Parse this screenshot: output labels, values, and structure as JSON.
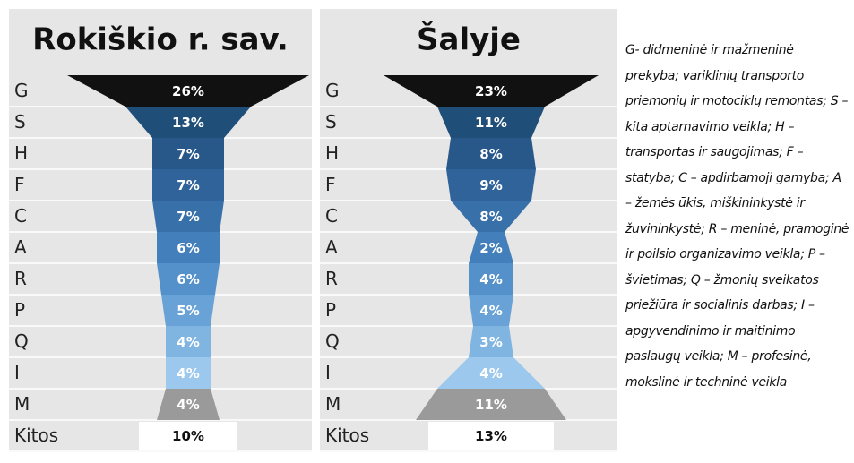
{
  "chart_data": [
    {
      "type": "funnel",
      "title": "Rokiškio r. sav.",
      "categories": [
        "G",
        "S",
        "H",
        "F",
        "C",
        "A",
        "R",
        "P",
        "Q",
        "I",
        "M",
        "Kitos"
      ],
      "values": [
        26,
        13,
        7,
        7,
        7,
        6,
        6,
        5,
        4,
        4,
        4,
        10
      ],
      "value_labels": [
        "26%",
        "13%",
        "7%",
        "7%",
        "7%",
        "6%",
        "6%",
        "5%",
        "4%",
        "4%",
        "4%",
        "10%"
      ],
      "colors": [
        "#111111",
        "#1f4e79",
        "#28578a",
        "#2f6399",
        "#3870aa",
        "#437fbb",
        "#5490c9",
        "#68a2d6",
        "#80b5e2",
        "#9cc8ee",
        "#9a9a9a",
        "#ffffff"
      ]
    },
    {
      "type": "funnel",
      "title": "Šalyje",
      "categories": [
        "G",
        "S",
        "H",
        "F",
        "C",
        "A",
        "R",
        "P",
        "Q",
        "I",
        "M",
        "Kitos"
      ],
      "values": [
        23,
        11,
        8,
        9,
        8,
        2,
        4,
        4,
        3,
        4,
        11,
        13
      ],
      "value_labels": [
        "23%",
        "11%",
        "8%",
        "9%",
        "8%",
        "2%",
        "4%",
        "4%",
        "3%",
        "4%",
        "11%",
        "13%"
      ],
      "colors": [
        "#111111",
        "#1f4e79",
        "#28578a",
        "#2f6399",
        "#3870aa",
        "#437fbb",
        "#5490c9",
        "#68a2d6",
        "#80b5e2",
        "#9cc8ee",
        "#9a9a9a",
        "#ffffff"
      ]
    }
  ],
  "note": "G- didmeninė ir mažmeninė prekyba; variklinių transporto priemonių ir motociklų remontas; S – kita aptarnavimo veikla; H – transportas ir saugojimas; F – statyba; C – apdirbamoji gamyba; A – žemės ūkis, miškininkystė ir žuvininkystė; R – meninė, pramoginė ir poilsio organizavimo veikla; P – švietimas; Q – žmonių sveikatos priežiūra ir socialinis darbas; I – apgyvendinimo ir maitinimo paslaugų veikla; M – profesinė, mokslinė ir techninė veikla"
}
